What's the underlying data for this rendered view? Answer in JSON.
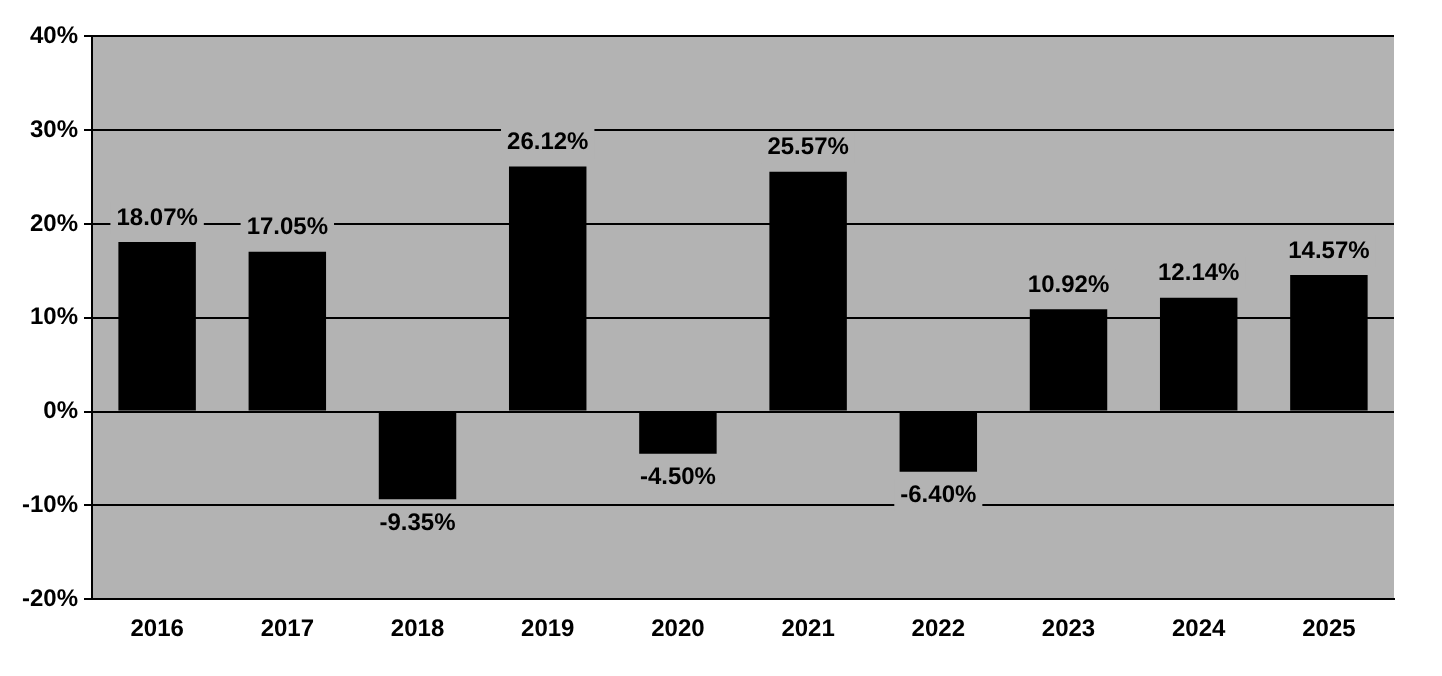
{
  "chart_data": {
    "type": "bar",
    "categories": [
      "2016",
      "2017",
      "2018",
      "2019",
      "2020",
      "2021",
      "2022",
      "2023",
      "2024",
      "2025"
    ],
    "values": [
      18.07,
      17.05,
      -9.35,
      26.12,
      -4.5,
      25.57,
      -6.4,
      10.92,
      12.14,
      14.57
    ],
    "value_labels": [
      "18.07%",
      "17.05%",
      "-9.35%",
      "26.12%",
      "-4.50%",
      "25.57%",
      "-6.40%",
      "10.92%",
      "12.14%",
      "14.57%"
    ],
    "color": "#000000",
    "ylim": [
      -20,
      40
    ],
    "yticks": [
      {
        "value": -20,
        "label": "-20%"
      },
      {
        "value": -10,
        "label": "-10%"
      },
      {
        "value": 0,
        "label": "0%"
      },
      {
        "value": 10,
        "label": "10%"
      },
      {
        "value": 20,
        "label": "20%"
      },
      {
        "value": 30,
        "label": "30%"
      },
      {
        "value": 40,
        "label": "40%"
      }
    ],
    "grid": "y",
    "legend": false
  }
}
